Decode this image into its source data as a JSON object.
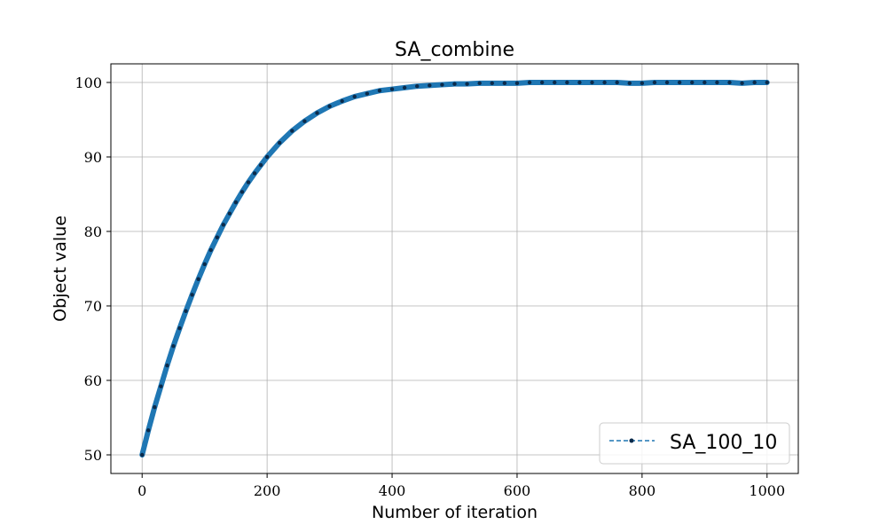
{
  "chart_data": {
    "type": "line",
    "title": "SA_combine",
    "xlabel": "Number of iteration",
    "ylabel": "Object value",
    "xlim": [
      -50,
      1050
    ],
    "ylim": [
      47.5,
      102.5
    ],
    "xticks": [
      0,
      200,
      400,
      600,
      800,
      1000
    ],
    "yticks": [
      50,
      60,
      70,
      80,
      90,
      100
    ],
    "grid": true,
    "legend_position": "lower-right",
    "series": [
      {
        "name": "SA_100_10",
        "color": "#1f77b4",
        "marker_color": "#0b2a4a",
        "line_style": "dashed",
        "marker": "dot",
        "x": [
          0,
          10,
          20,
          30,
          40,
          50,
          60,
          70,
          80,
          90,
          100,
          110,
          120,
          130,
          140,
          150,
          160,
          170,
          180,
          190,
          200,
          220,
          240,
          260,
          280,
          300,
          320,
          340,
          360,
          380,
          400,
          420,
          440,
          460,
          480,
          500,
          520,
          540,
          560,
          580,
          600,
          620,
          640,
          660,
          680,
          700,
          720,
          740,
          760,
          780,
          800,
          820,
          840,
          860,
          880,
          900,
          920,
          940,
          960,
          980,
          1000
        ],
        "values": [
          50.0,
          53.3,
          56.4,
          59.2,
          62.0,
          64.6,
          67.0,
          69.3,
          71.5,
          73.6,
          75.6,
          77.5,
          79.2,
          80.9,
          82.4,
          83.9,
          85.3,
          86.6,
          87.8,
          88.9,
          90.0,
          91.9,
          93.5,
          94.8,
          95.9,
          96.8,
          97.5,
          98.1,
          98.5,
          98.9,
          99.1,
          99.3,
          99.5,
          99.6,
          99.7,
          99.8,
          99.8,
          99.9,
          99.9,
          99.9,
          99.9,
          100.0,
          100.0,
          100.0,
          100.0,
          100.0,
          100.0,
          100.0,
          100.0,
          99.9,
          99.9,
          100.0,
          100.0,
          100.0,
          100.0,
          100.0,
          100.0,
          100.0,
          99.9,
          100.0,
          100.0
        ]
      }
    ]
  }
}
